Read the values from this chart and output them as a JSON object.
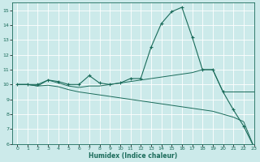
{
  "xlabel": "Humidex (Indice chaleur)",
  "background_color": "#cceaea",
  "line_color": "#1a6b5a",
  "grid_color": "#ffffff",
  "xlim": [
    -0.5,
    23
  ],
  "ylim": [
    6,
    15.5
  ],
  "xticks": [
    0,
    1,
    2,
    3,
    4,
    5,
    6,
    7,
    8,
    9,
    10,
    11,
    12,
    13,
    14,
    15,
    16,
    17,
    18,
    19,
    20,
    21,
    22,
    23
  ],
  "yticks": [
    6,
    7,
    8,
    9,
    10,
    11,
    12,
    13,
    14,
    15
  ],
  "line1_x": [
    0,
    1,
    2,
    3,
    4,
    5,
    6,
    7,
    8,
    9,
    10,
    11,
    12,
    13,
    14,
    15,
    16,
    17,
    18,
    19,
    20,
    21,
    22,
    23
  ],
  "line1_y": [
    10,
    10,
    10,
    10.3,
    10.2,
    10,
    10,
    10.6,
    10.1,
    10,
    10.1,
    10.4,
    10.4,
    12.5,
    14.1,
    14.9,
    15.2,
    13.2,
    11.0,
    11.0,
    9.5,
    8.3,
    7.2,
    5.8
  ],
  "line2_x": [
    0,
    1,
    2,
    3,
    4,
    5,
    6,
    7,
    8,
    9,
    10,
    11,
    12,
    13,
    14,
    15,
    16,
    17,
    18,
    19,
    20,
    21,
    22,
    23
  ],
  "line2_y": [
    10,
    10,
    9.9,
    10.3,
    10.1,
    9.9,
    9.8,
    9.9,
    9.9,
    10.0,
    10.1,
    10.2,
    10.3,
    10.4,
    10.5,
    10.6,
    10.7,
    10.8,
    11.0,
    11.0,
    9.5,
    9.5,
    9.5,
    9.5
  ],
  "line3_x": [
    0,
    1,
    2,
    3,
    4,
    5,
    6,
    7,
    8,
    9,
    10,
    11,
    12,
    13,
    14,
    15,
    16,
    17,
    18,
    19,
    20,
    21,
    22,
    23
  ],
  "line3_y": [
    10,
    10,
    9.9,
    9.95,
    9.85,
    9.65,
    9.5,
    9.4,
    9.3,
    9.2,
    9.1,
    9.0,
    8.9,
    8.8,
    8.7,
    8.6,
    8.5,
    8.4,
    8.3,
    8.2,
    8.0,
    7.8,
    7.5,
    5.8
  ]
}
